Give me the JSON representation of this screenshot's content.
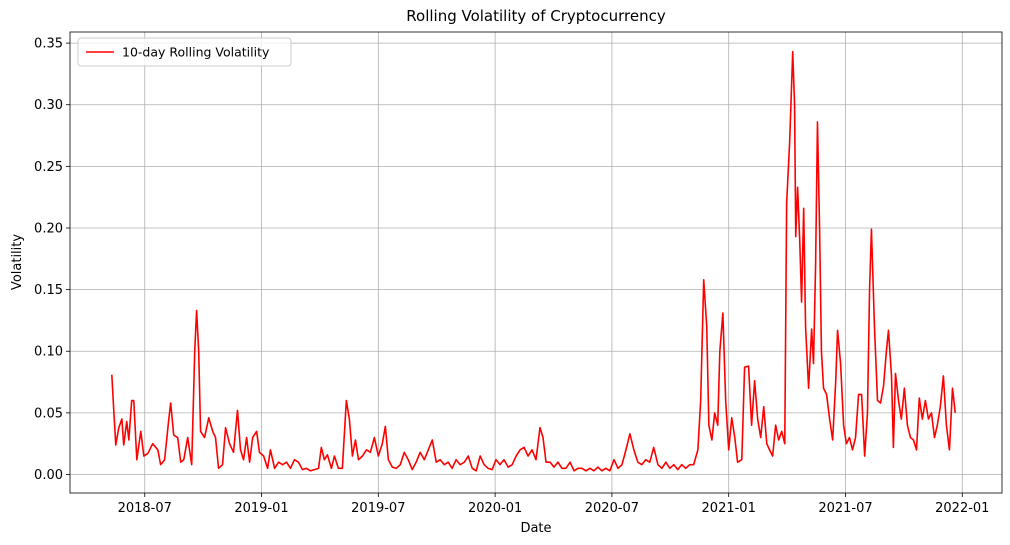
{
  "chart_data": {
    "type": "line",
    "title": "Rolling Volatility of Cryptocurrency",
    "xlabel": "Date",
    "ylabel": "Volatility",
    "grid": true,
    "legend": "upper left",
    "xlim": [
      2018.18,
      2022.17
    ],
    "xticks": [
      {
        "value": 2018.5,
        "label": "2018-07"
      },
      {
        "value": 2019.0,
        "label": "2019-01"
      },
      {
        "value": 2019.5,
        "label": "2019-07"
      },
      {
        "value": 2020.0,
        "label": "2020-01"
      },
      {
        "value": 2020.5,
        "label": "2020-07"
      },
      {
        "value": 2021.0,
        "label": "2021-01"
      },
      {
        "value": 2021.5,
        "label": "2021-07"
      },
      {
        "value": 2022.0,
        "label": "2022-01"
      }
    ],
    "ylim": [
      -0.015,
      0.359
    ],
    "yticks": [
      {
        "value": 0,
        "label": "0.00"
      },
      0.05,
      {
        "value": 0.1,
        "label": "0.10"
      },
      0.15,
      {
        "value": 0.2,
        "label": "0.20"
      },
      0.25,
      {
        "value": 0.3,
        "label": "0.30"
      },
      0.35
    ],
    "x": [
      2018.359,
      2018.368,
      2018.376,
      2018.389,
      2018.402,
      2018.41,
      2018.423,
      2018.432,
      2018.444,
      2018.453,
      2018.466,
      2018.483,
      2018.496,
      2018.513,
      2018.534,
      2018.556,
      2018.568,
      2018.585,
      2018.603,
      2018.611,
      2018.624,
      2018.641,
      2018.654,
      2018.667,
      2018.684,
      2018.701,
      2018.714,
      2018.722,
      2018.731,
      2018.739,
      2018.756,
      2018.774,
      2018.791,
      2018.803,
      2018.816,
      2018.833,
      2018.846,
      2018.863,
      2018.88,
      2018.897,
      2018.91,
      2018.923,
      2018.936,
      2018.949,
      2018.962,
      2018.979,
      2018.991,
      2019.009,
      2019.026,
      2019.038,
      2019.056,
      2019.073,
      2019.09,
      2019.107,
      2019.124,
      2019.141,
      2019.158,
      2019.175,
      2019.192,
      2019.209,
      2019.226,
      2019.244,
      2019.256,
      2019.269,
      2019.282,
      2019.299,
      2019.312,
      2019.329,
      2019.346,
      2019.363,
      2019.376,
      2019.389,
      2019.402,
      2019.415,
      2019.432,
      2019.449,
      2019.466,
      2019.483,
      2019.5,
      2019.517,
      2019.53,
      2019.543,
      2019.56,
      2019.577,
      2019.594,
      2019.611,
      2019.628,
      2019.645,
      2019.662,
      2019.679,
      2019.697,
      2019.714,
      2019.731,
      2019.748,
      2019.765,
      2019.782,
      2019.799,
      2019.816,
      2019.833,
      2019.85,
      2019.868,
      2019.885,
      2019.902,
      2019.919,
      2019.936,
      2019.953,
      2019.97,
      2019.987,
      2020.004,
      2020.021,
      2020.038,
      2020.056,
      2020.073,
      2020.09,
      2020.107,
      2020.124,
      2020.141,
      2020.158,
      2020.175,
      2020.192,
      2020.205,
      2020.218,
      2020.235,
      2020.252,
      2020.269,
      2020.286,
      2020.303,
      2020.321,
      2020.338,
      2020.355,
      2020.372,
      2020.389,
      2020.406,
      2020.423,
      2020.44,
      2020.457,
      2020.474,
      2020.491,
      2020.509,
      2020.526,
      2020.543,
      2020.56,
      2020.577,
      2020.594,
      2020.611,
      2020.628,
      2020.645,
      2020.662,
      2020.679,
      2020.697,
      2020.714,
      2020.731,
      2020.748,
      2020.765,
      2020.782,
      2020.799,
      2020.816,
      2020.833,
      2020.85,
      2020.868,
      2020.88,
      2020.893,
      2020.906,
      2020.915,
      2020.928,
      2020.94,
      2020.953,
      2020.962,
      2020.975,
      2020.987,
      2021.0,
      2021.013,
      2021.026,
      2021.038,
      2021.056,
      2021.068,
      2021.085,
      2021.098,
      2021.111,
      2021.124,
      2021.137,
      2021.15,
      2021.163,
      2021.175,
      2021.188,
      2021.201,
      2021.214,
      2021.227,
      2021.24,
      2021.248,
      2021.261,
      2021.274,
      2021.282,
      2021.287,
      2021.295,
      2021.304,
      2021.312,
      2021.321,
      2021.329,
      2021.342,
      2021.355,
      2021.363,
      2021.372,
      2021.38,
      2021.389,
      2021.397,
      2021.406,
      2021.419,
      2021.432,
      2021.445,
      2021.458,
      2021.466,
      2021.479,
      2021.492,
      2021.504,
      2021.517,
      2021.53,
      2021.543,
      2021.556,
      2021.569,
      2021.582,
      2021.594,
      2021.603,
      2021.611,
      2021.624,
      2021.637,
      2021.65,
      2021.663,
      2021.675,
      2021.684,
      2021.697,
      2021.705,
      2021.714,
      2021.727,
      2021.739,
      2021.752,
      2021.765,
      2021.778,
      2021.791,
      2021.804,
      2021.816,
      2021.829,
      2021.842,
      2021.855,
      2021.868,
      2021.881,
      2021.893,
      2021.906,
      2021.919,
      2021.932,
      2021.945,
      2021.958,
      2021.97
    ],
    "series": [
      {
        "name": "10-day Rolling Volatility",
        "color": "#ff0000",
        "values": [
          0.081,
          0.05,
          0.024,
          0.038,
          0.045,
          0.024,
          0.043,
          0.028,
          0.06,
          0.06,
          0.012,
          0.035,
          0.015,
          0.017,
          0.025,
          0.02,
          0.008,
          0.012,
          0.045,
          0.058,
          0.032,
          0.03,
          0.01,
          0.012,
          0.03,
          0.008,
          0.1,
          0.133,
          0.1,
          0.035,
          0.03,
          0.046,
          0.035,
          0.03,
          0.005,
          0.008,
          0.038,
          0.025,
          0.018,
          0.052,
          0.02,
          0.012,
          0.03,
          0.01,
          0.03,
          0.035,
          0.018,
          0.015,
          0.005,
          0.02,
          0.005,
          0.01,
          0.008,
          0.01,
          0.005,
          0.012,
          0.01,
          0.004,
          0.005,
          0.003,
          0.004,
          0.005,
          0.022,
          0.012,
          0.016,
          0.005,
          0.015,
          0.005,
          0.005,
          0.06,
          0.045,
          0.015,
          0.028,
          0.012,
          0.015,
          0.02,
          0.018,
          0.03,
          0.015,
          0.025,
          0.039,
          0.012,
          0.006,
          0.005,
          0.008,
          0.018,
          0.012,
          0.004,
          0.01,
          0.018,
          0.012,
          0.02,
          0.028,
          0.01,
          0.012,
          0.008,
          0.01,
          0.005,
          0.012,
          0.008,
          0.01,
          0.015,
          0.005,
          0.003,
          0.015,
          0.008,
          0.005,
          0.004,
          0.012,
          0.008,
          0.012,
          0.006,
          0.008,
          0.015,
          0.02,
          0.022,
          0.015,
          0.02,
          0.012,
          0.038,
          0.03,
          0.01,
          0.01,
          0.006,
          0.01,
          0.005,
          0.005,
          0.01,
          0.003,
          0.005,
          0.005,
          0.003,
          0.005,
          0.003,
          0.006,
          0.003,
          0.005,
          0.003,
          0.012,
          0.005,
          0.008,
          0.02,
          0.033,
          0.02,
          0.01,
          0.008,
          0.012,
          0.01,
          0.022,
          0.008,
          0.005,
          0.01,
          0.005,
          0.008,
          0.004,
          0.008,
          0.005,
          0.008,
          0.008,
          0.02,
          0.06,
          0.158,
          0.12,
          0.04,
          0.028,
          0.05,
          0.04,
          0.1,
          0.131,
          0.06,
          0.02,
          0.046,
          0.03,
          0.01,
          0.012,
          0.087,
          0.088,
          0.04,
          0.076,
          0.045,
          0.03,
          0.055,
          0.025,
          0.02,
          0.015,
          0.04,
          0.028,
          0.035,
          0.025,
          0.22,
          0.27,
          0.343,
          0.3,
          0.193,
          0.233,
          0.19,
          0.14,
          0.216,
          0.12,
          0.07,
          0.118,
          0.09,
          0.17,
          0.286,
          0.2,
          0.1,
          0.07,
          0.065,
          0.045,
          0.028,
          0.075,
          0.117,
          0.09,
          0.04,
          0.025,
          0.03,
          0.02,
          0.03,
          0.065,
          0.065,
          0.015,
          0.05,
          0.15,
          0.199,
          0.12,
          0.06,
          0.058,
          0.072,
          0.1,
          0.117,
          0.08,
          0.022,
          0.082,
          0.06,
          0.045,
          0.07,
          0.04,
          0.03,
          0.028,
          0.02,
          0.062,
          0.045,
          0.06,
          0.045,
          0.05,
          0.03,
          0.04,
          0.055,
          0.08,
          0.04,
          0.02,
          0.07,
          0.05
        ]
      }
    ]
  }
}
